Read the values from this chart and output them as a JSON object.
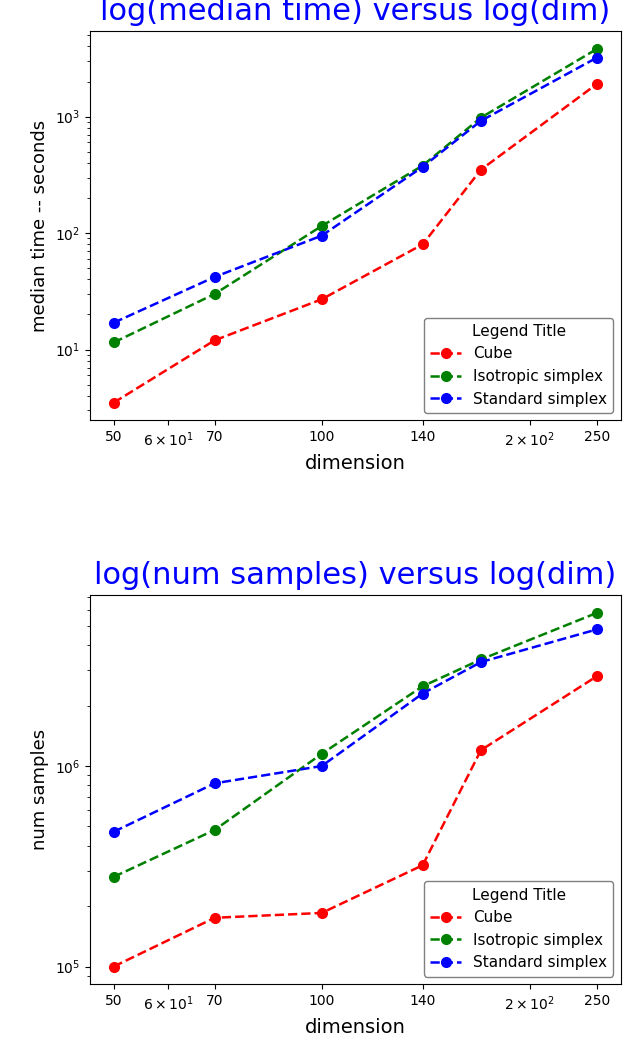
{
  "title1": "log(median time) versus log(dim)",
  "title2": "log(num samples) versus log(dim)",
  "title_color": "#0000ff",
  "title_fontsize": 22,
  "xlabel": "dimension",
  "ylabel1": "median time -- seconds",
  "ylabel2": "num samples",
  "legend_title": "Legend Title",
  "x": [
    50,
    70,
    100,
    140,
    170,
    250
  ],
  "time_cube": [
    3.5,
    12.0,
    27.0,
    80.0,
    350.0,
    1900.0
  ],
  "time_iso": [
    11.5,
    30.0,
    115.0,
    380.0,
    980.0,
    3800.0
  ],
  "time_std": [
    17.0,
    42.0,
    95.0,
    370.0,
    920.0,
    3200.0
  ],
  "samples_cube": [
    100000,
    175000,
    185000,
    320000,
    1200000,
    2800000
  ],
  "samples_iso": [
    280000,
    480000,
    1150000,
    2500000,
    3400000,
    5800000
  ],
  "samples_std": [
    470000,
    820000,
    1000000,
    2300000,
    3300000,
    4800000
  ],
  "color_cube": "#ff0000",
  "color_iso": "#008000",
  "color_std": "#0000ff",
  "marker": "o",
  "linestyle": "--",
  "linewidth": 1.8,
  "markersize": 7,
  "xtick_vals": [
    50,
    60,
    70,
    100,
    140,
    200,
    250
  ],
  "legend_fontsize": 11,
  "legend_title_fontsize": 11,
  "xlabel_fontsize": 14,
  "ylabel_fontsize": 13
}
